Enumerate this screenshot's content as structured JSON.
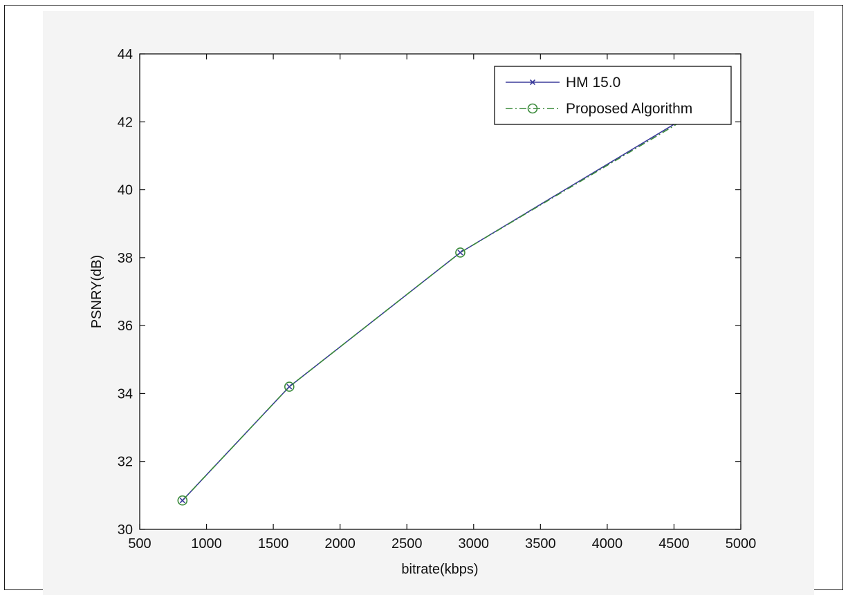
{
  "chart_data": {
    "type": "line",
    "title": "",
    "xlabel": "bitrate(kbps)",
    "ylabel": "PSNRY(dB)",
    "xlim": [
      500,
      5000
    ],
    "ylim": [
      30,
      44
    ],
    "xticks": [
      500,
      1000,
      1500,
      2000,
      2500,
      3000,
      3500,
      4000,
      4500,
      5000
    ],
    "yticks": [
      30,
      32,
      34,
      36,
      38,
      40,
      42,
      44
    ],
    "grid": false,
    "legend_position": "top-right",
    "series": [
      {
        "name": "HM 15.0",
        "color": "#3b3b9a",
        "line_style": "solid",
        "marker": "x",
        "x": [
          820,
          1620,
          2900,
          4700
        ],
        "y": [
          30.85,
          34.2,
          38.15,
          42.4
        ]
      },
      {
        "name": "Proposed Algorithm",
        "color": "#3a8a3a",
        "line_style": "dashdot",
        "marker": "o",
        "x": [
          820,
          1620,
          2900,
          4700
        ],
        "y": [
          30.85,
          34.2,
          38.15,
          42.35
        ]
      }
    ]
  }
}
